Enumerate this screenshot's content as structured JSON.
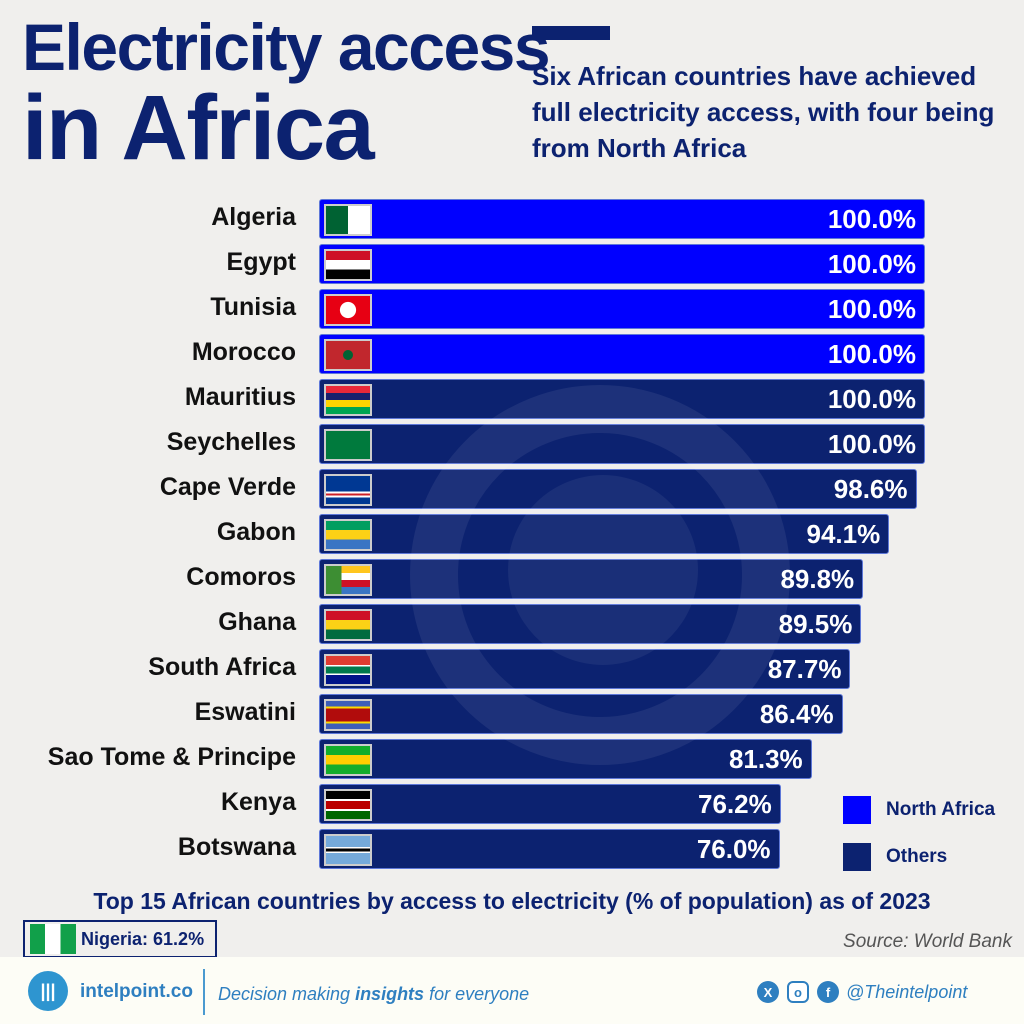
{
  "header": {
    "title_line1": "Electricity access",
    "title_line2": "in Africa",
    "subtitle": "Six African countries have achieved full electricity access, with four being from North Africa"
  },
  "chart_data": {
    "type": "bar",
    "orientation": "horizontal",
    "title": "Top 15 African countries by access to electricity (% of population) as of 2023",
    "xlim": [
      0,
      100
    ],
    "categories": [
      "Algeria",
      "Egypt",
      "Tunisia",
      "Morocco",
      "Mauritius",
      "Seychelles",
      "Cape Verde",
      "Gabon",
      "Comoros",
      "Ghana",
      "South Africa",
      "Eswatini",
      "Sao Tome & Principe",
      "Kenya",
      "Botswana"
    ],
    "values": [
      100.0,
      100.0,
      100.0,
      100.0,
      100.0,
      100.0,
      98.6,
      94.1,
      89.8,
      89.5,
      87.7,
      86.4,
      81.3,
      76.2,
      76.0
    ],
    "value_labels": [
      "100.0%",
      "100.0%",
      "100.0%",
      "100.0%",
      "100.0%",
      "100.0%",
      "98.6%",
      "94.1%",
      "89.8%",
      "89.5%",
      "87.7%",
      "86.4%",
      "81.3%",
      "76.2%",
      "76.0%"
    ],
    "groups": [
      "North Africa",
      "North Africa",
      "North Africa",
      "North Africa",
      "Others",
      "Others",
      "Others",
      "Others",
      "Others",
      "Others",
      "Others",
      "Others",
      "Others",
      "Others",
      "Others"
    ],
    "legend": [
      {
        "name": "North Africa",
        "color": "#0000ff"
      },
      {
        "name": "Others",
        "color": "#0c2270"
      }
    ],
    "legend_position": "bottom-right"
  },
  "flags": [
    "linear-gradient(90deg,#006233 50%,#fff 50%)",
    "linear-gradient(#ce1126 33%,#fff 33% 66%,#000 66%)",
    "radial-gradient(circle,#fff 30%,#e70013 32%)",
    "radial-gradient(circle,#006233 18%,#c1272d 20%)",
    "linear-gradient(#ea2839 25%,#1a206d 25% 50%,#ffd500 50% 75%,#00a551 75%)",
    "conic-gradient(from 180deg at 0 100%,#003f87 0 20deg,#fcd856 20deg 40deg,#d62828 40deg 60deg,#fff 60deg 75deg,#007a3d 75deg)",
    "linear-gradient(#003893 55%,#fff 55% 62%,#cf2027 62% 70%,#fff 70% 77%,#003893 77%)",
    "linear-gradient(#009e60 33%,#fcd116 33% 66%,#3a75c4 66%)",
    "linear-gradient(90deg,#3d8e33 35%,transparent 35%),linear-gradient(#ffc61e 25%,#fff 25% 50%,#ce1126 50% 75%,#3a75c4 75%)",
    "linear-gradient(#ce1126 33%,#fcd116 33% 66%,#006b3f 66%)",
    "linear-gradient(#e03c31 33%,#fff 33% 38%,#007a4d 38% 62%,#fff 62% 67%,#001489 67%)",
    "linear-gradient(#3e5eb9 20%,#ffd900 20% 26%,#b10c0c 26% 74%,#ffd900 74% 80%,#3e5eb9 80%)",
    "linear-gradient(#12ad2b 33%,#ffce00 33% 66%,#12ad2b 66%)",
    "linear-gradient(#000 28%,#fff 28% 35%,#b00 35% 65%,#fff 65% 72%,#006600 72%)",
    "linear-gradient(#75aadb 40%,#fff 40% 44%,#000 44% 56%,#fff 56% 60%,#75aadb 60%)"
  ],
  "highlight": {
    "label": "Nigeria:",
    "value": "61.2%"
  },
  "source": "Source: World Bank",
  "footer": {
    "brand": "intelpoint.co",
    "tag_pre": "Decision making ",
    "tag_bold": "insights",
    "tag_post": " for everyone",
    "handle": "@Theintelpoint",
    "social": [
      "x-icon",
      "instagram-icon",
      "facebook-icon"
    ]
  }
}
